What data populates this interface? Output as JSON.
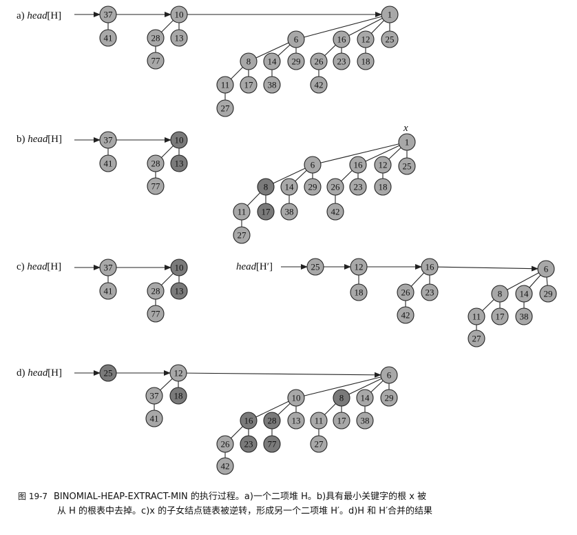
{
  "colors": {
    "node_fill": "#a8a8a8",
    "node_fill_dark": "#7a7a7a",
    "node_stroke": "#222222",
    "edge": "#222222",
    "text": "#111111"
  },
  "panels": [
    {
      "label": "a) head[H]",
      "label_prefix": "a)",
      "label_name": "head",
      "label_arg": "[H]",
      "nodes": [
        {
          "id": "a37",
          "key": "37"
        },
        {
          "id": "a41",
          "key": "41"
        },
        {
          "id": "a10",
          "key": "10"
        },
        {
          "id": "a28",
          "key": "28"
        },
        {
          "id": "a13",
          "key": "13"
        },
        {
          "id": "a77",
          "key": "77"
        },
        {
          "id": "a1",
          "key": "1"
        },
        {
          "id": "a6",
          "key": "6"
        },
        {
          "id": "a16",
          "key": "16"
        },
        {
          "id": "a12",
          "key": "12"
        },
        {
          "id": "a25",
          "key": "25"
        },
        {
          "id": "a8",
          "key": "8"
        },
        {
          "id": "a14",
          "key": "14"
        },
        {
          "id": "a29",
          "key": "29"
        },
        {
          "id": "a26",
          "key": "26"
        },
        {
          "id": "a23",
          "key": "23"
        },
        {
          "id": "a18",
          "key": "18"
        },
        {
          "id": "a11",
          "key": "11"
        },
        {
          "id": "a17",
          "key": "17"
        },
        {
          "id": "a38",
          "key": "38"
        },
        {
          "id": "a42",
          "key": "42"
        },
        {
          "id": "a27",
          "key": "27"
        }
      ]
    },
    {
      "label": "b) head[H]",
      "label_prefix": "b)",
      "label_name": "head",
      "label_arg": "[H]",
      "x_label": "x",
      "nodes": [
        {
          "id": "b37",
          "key": "37"
        },
        {
          "id": "b41",
          "key": "41"
        },
        {
          "id": "b10",
          "key": "10"
        },
        {
          "id": "b28",
          "key": "28"
        },
        {
          "id": "b13",
          "key": "13"
        },
        {
          "id": "b77",
          "key": "77"
        },
        {
          "id": "b1",
          "key": "1"
        },
        {
          "id": "b6",
          "key": "6"
        },
        {
          "id": "b16",
          "key": "16"
        },
        {
          "id": "b12",
          "key": "12"
        },
        {
          "id": "b25",
          "key": "25"
        },
        {
          "id": "b8",
          "key": "8"
        },
        {
          "id": "b14",
          "key": "14"
        },
        {
          "id": "b29",
          "key": "29"
        },
        {
          "id": "b26",
          "key": "26"
        },
        {
          "id": "b23",
          "key": "23"
        },
        {
          "id": "b18",
          "key": "18"
        },
        {
          "id": "b11",
          "key": "11"
        },
        {
          "id": "b17",
          "key": "17"
        },
        {
          "id": "b38",
          "key": "38"
        },
        {
          "id": "b42",
          "key": "42"
        },
        {
          "id": "b27",
          "key": "27"
        }
      ]
    },
    {
      "label": "c) head[H]",
      "label_prefix": "c)",
      "label_name": "head",
      "label_arg": "[H]",
      "label2_name": "head",
      "label2_arg": "[H′]",
      "nodes": [
        {
          "id": "c37",
          "key": "37"
        },
        {
          "id": "c41",
          "key": "41"
        },
        {
          "id": "c10",
          "key": "10"
        },
        {
          "id": "c28",
          "key": "28"
        },
        {
          "id": "c13",
          "key": "13"
        },
        {
          "id": "c77",
          "key": "77"
        },
        {
          "id": "c25",
          "key": "25"
        },
        {
          "id": "c12",
          "key": "12"
        },
        {
          "id": "c18",
          "key": "18"
        },
        {
          "id": "c16",
          "key": "16"
        },
        {
          "id": "c26",
          "key": "26"
        },
        {
          "id": "c23",
          "key": "23"
        },
        {
          "id": "c42",
          "key": "42"
        },
        {
          "id": "c6",
          "key": "6"
        },
        {
          "id": "c8",
          "key": "8"
        },
        {
          "id": "c14",
          "key": "14"
        },
        {
          "id": "c29",
          "key": "29"
        },
        {
          "id": "c11",
          "key": "11"
        },
        {
          "id": "c17",
          "key": "17"
        },
        {
          "id": "c38",
          "key": "38"
        },
        {
          "id": "c27",
          "key": "27"
        }
      ]
    },
    {
      "label": "d) head[H]",
      "label_prefix": "d)",
      "label_name": "head",
      "label_arg": "[H]",
      "nodes": [
        {
          "id": "d25",
          "key": "25"
        },
        {
          "id": "d12",
          "key": "12"
        },
        {
          "id": "d37",
          "key": "37"
        },
        {
          "id": "d18",
          "key": "18"
        },
        {
          "id": "d41",
          "key": "41"
        },
        {
          "id": "d6",
          "key": "6"
        },
        {
          "id": "d10",
          "key": "10"
        },
        {
          "id": "d8",
          "key": "8"
        },
        {
          "id": "d14",
          "key": "14"
        },
        {
          "id": "d29",
          "key": "29"
        },
        {
          "id": "d16",
          "key": "16"
        },
        {
          "id": "d28",
          "key": "28"
        },
        {
          "id": "d13",
          "key": "13"
        },
        {
          "id": "d11",
          "key": "11"
        },
        {
          "id": "d17",
          "key": "17"
        },
        {
          "id": "d38",
          "key": "38"
        },
        {
          "id": "d26",
          "key": "26"
        },
        {
          "id": "d23",
          "key": "23"
        },
        {
          "id": "d77",
          "key": "77"
        },
        {
          "id": "d27",
          "key": "27"
        },
        {
          "id": "d42",
          "key": "42"
        }
      ]
    }
  ],
  "caption": {
    "figure_label": "图 19-7",
    "line1": "BINOMIAL-HEAP-EXTRACT-MIN 的执行过程。a)一个二项堆 H。b)具有最小关键字的根 x 被",
    "line2": "从 H 的根表中去掉。c)x 的子女结点链表被逆转，形成另一个二项堆 H′。d)H 和 H′合并的结果"
  }
}
